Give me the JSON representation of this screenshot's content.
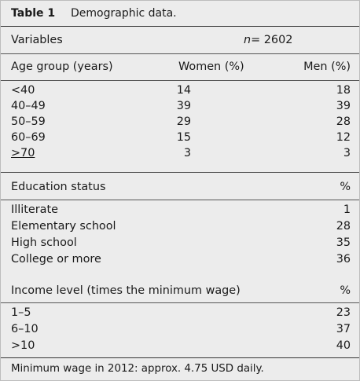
{
  "caption": {
    "label": "Table 1",
    "title": "Demographic data."
  },
  "header": {
    "variables": "Variables",
    "n_label": "n",
    "n_value": "= 2602"
  },
  "age": {
    "heading": "Age group (years)",
    "women_col": "Women (%)",
    "men_col": "Men (%)",
    "rows": [
      {
        "group": "<40",
        "women": "14",
        "men": "18"
      },
      {
        "group": "40–49",
        "women": "39",
        "men": "39"
      },
      {
        "group": "50–59",
        "women": "29",
        "men": "28"
      },
      {
        "group": "60–69",
        "women": "15",
        "men": "12"
      },
      {
        "group": ">70",
        "women": "3",
        "men": "3"
      }
    ]
  },
  "education": {
    "heading": "Education status",
    "unit": "%",
    "rows": [
      {
        "label": "Illiterate",
        "value": "1"
      },
      {
        "label": "Elementary school",
        "value": "28"
      },
      {
        "label": "High school",
        "value": "35"
      },
      {
        "label": "College or more",
        "value": "36"
      }
    ]
  },
  "income": {
    "heading": "Income level (times the minimum wage)",
    "unit": "%",
    "rows": [
      {
        "label": "1–5",
        "value": "23"
      },
      {
        "label": "6–10",
        "value": "37"
      },
      {
        "label": ">10",
        "value": "40"
      }
    ]
  },
  "footnote": "Minimum wage in 2012: approx. 4.75 USD daily."
}
